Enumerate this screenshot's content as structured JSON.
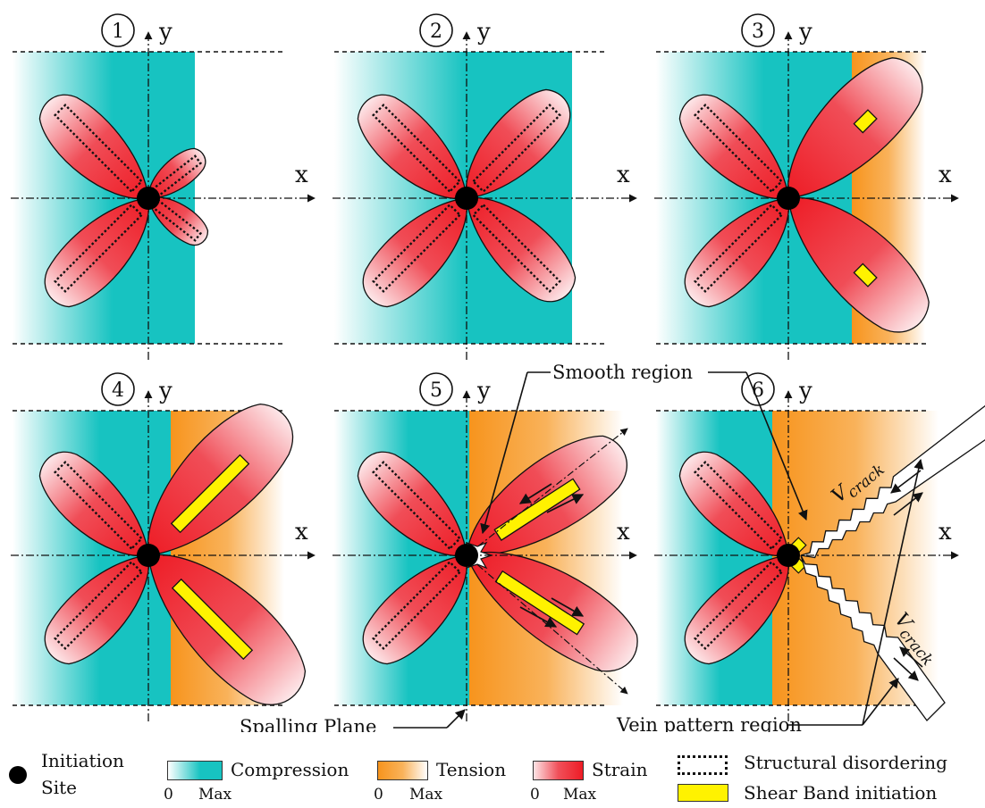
{
  "axes": {
    "x_label": "x",
    "y_label": "y"
  },
  "panels": [
    {
      "number": "1",
      "stage": "compression"
    },
    {
      "number": "2",
      "stage": "compression"
    },
    {
      "number": "3",
      "stage": "tension-front"
    },
    {
      "number": "4",
      "stage": "tension-front"
    },
    {
      "number": "5",
      "stage": "crack-start"
    },
    {
      "number": "6",
      "stage": "crack-propagation"
    }
  ],
  "annotations": {
    "smooth_region": "Smooth region",
    "spalling_plane": "Spalling Plane",
    "vein_pattern_region": "Vein pattern region",
    "v_crack": "V",
    "v_crack_sub": "crack"
  },
  "legend": {
    "initiation_site": [
      "Initiation",
      "Site"
    ],
    "compression": "Compression",
    "tension": "Tension",
    "strain": "Strain",
    "structural_disordering": "Structural disordering",
    "shear_band": "Shear Band initiation",
    "scale_min": "0",
    "scale_max": "Max"
  },
  "colors": {
    "compression": "#17c3c1",
    "tension": "#f7941d",
    "strain": "#ee1c25",
    "shear_band": "#fff200"
  }
}
